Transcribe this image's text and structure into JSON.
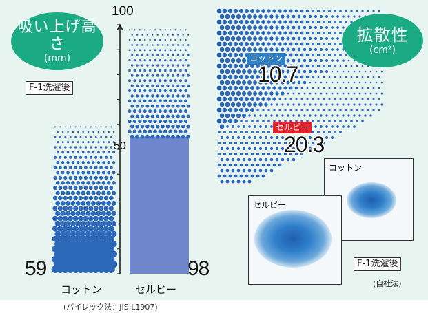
{
  "chart_data": [
    {
      "type": "bar",
      "title": "吸い上げ高さ",
      "unit": "(mm)",
      "categories": [
        "コットン",
        "セルピー"
      ],
      "values": [
        59,
        98
      ],
      "ylim": [
        0,
        100
      ],
      "yticks": [
        "100",
        "50"
      ],
      "condition": "F-1洗濯後",
      "method": "(バイレック法：JIS L1907)",
      "value_labels": [
        "59",
        "98"
      ]
    },
    {
      "type": "area",
      "title": "拡散性",
      "unit": "(cm²)",
      "series": [
        {
          "name": "コットン",
          "value": 10.7,
          "label": "10.7"
        },
        {
          "name": "セルピー",
          "value": 20.3,
          "label": "20.3"
        }
      ],
      "condition": "F-1洗濯後",
      "method": "(自社法)",
      "photos": [
        "コットン",
        "セルピー"
      ]
    }
  ],
  "colors": {
    "background": "#e8f4f0",
    "badge": "#1aaa84",
    "dot_blue": "#2d68b8",
    "cotton_tag": "#2f7fc6",
    "selpy_tag": "#e2222a"
  }
}
